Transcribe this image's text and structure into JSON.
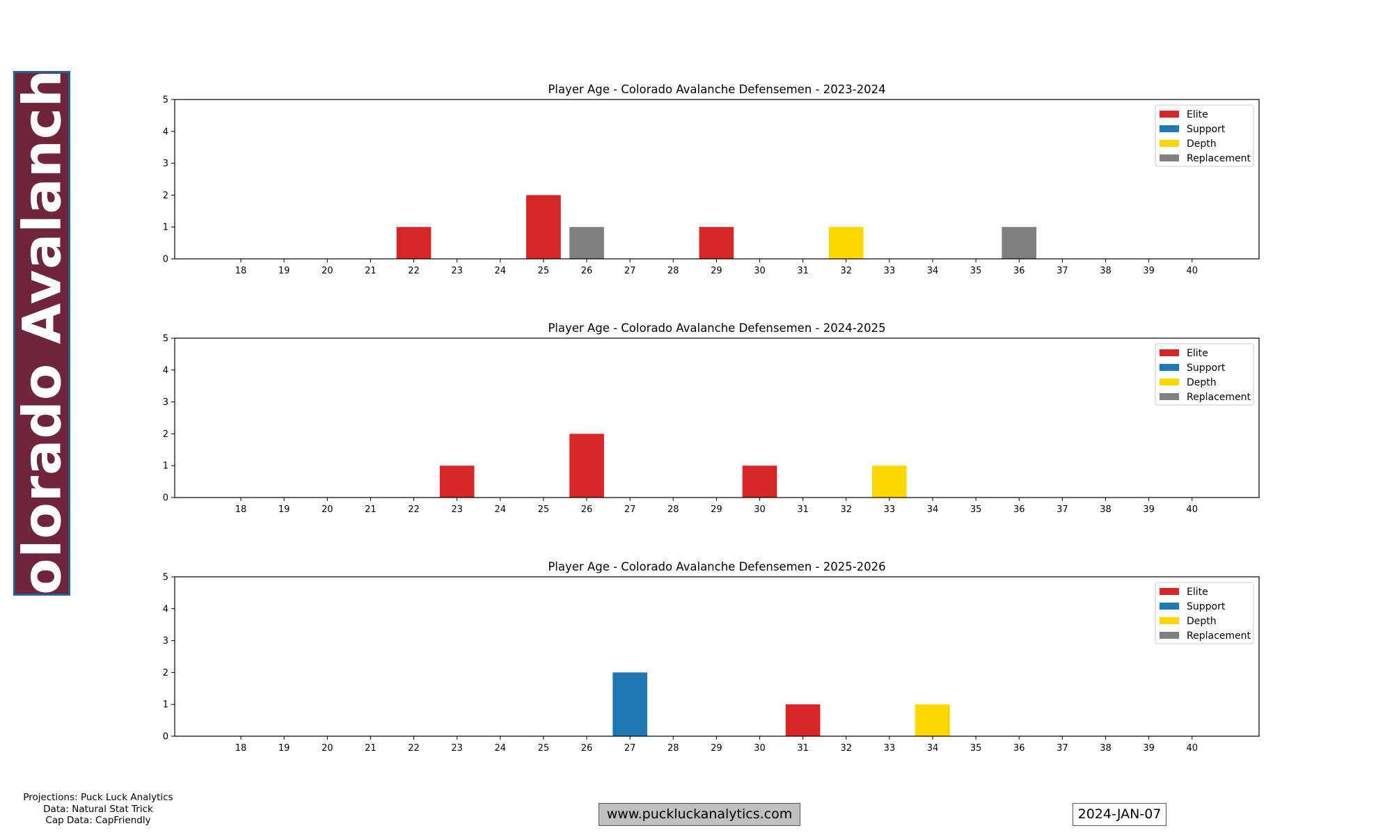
{
  "banner": {
    "team": "Colorado Avalanche",
    "bg_color": "#6f263d",
    "border_color": "#236192"
  },
  "credits": [
    "Projections: Puck Luck Analytics",
    "Data: Natural Stat Trick",
    "Cap Data: CapFriendly"
  ],
  "url": "www.puckluckanalytics.com",
  "date": "2024-JAN-07",
  "chart_data": [
    {
      "type": "bar",
      "title": "Player Age - Colorado Avalanche Defensemen - 2023-2024",
      "categories": [
        18,
        19,
        20,
        21,
        22,
        23,
        24,
        25,
        26,
        27,
        28,
        29,
        30,
        31,
        32,
        33,
        34,
        35,
        36,
        37,
        38,
        39,
        40
      ],
      "xlim": [
        16.47,
        41.55
      ],
      "ylim": [
        0,
        5
      ],
      "yticks": [
        0,
        1,
        2,
        3,
        4,
        5
      ],
      "legend": {
        "placement": "top-right",
        "entries": [
          "Elite",
          "Support",
          "Depth",
          "Replacement"
        ]
      },
      "bars": [
        {
          "age": 22,
          "tier": "Elite",
          "count": 1
        },
        {
          "age": 25,
          "tier": "Elite",
          "count": 2
        },
        {
          "age": 26,
          "tier": "Replacement",
          "count": 1
        },
        {
          "age": 29,
          "tier": "Elite",
          "count": 1
        },
        {
          "age": 32,
          "tier": "Depth",
          "count": 1
        },
        {
          "age": 36,
          "tier": "Replacement",
          "count": 1
        }
      ]
    },
    {
      "type": "bar",
      "title": "Player Age - Colorado Avalanche Defensemen - 2024-2025",
      "categories": [
        18,
        19,
        20,
        21,
        22,
        23,
        24,
        25,
        26,
        27,
        28,
        29,
        30,
        31,
        32,
        33,
        34,
        35,
        36,
        37,
        38,
        39,
        40
      ],
      "xlim": [
        16.47,
        41.55
      ],
      "ylim": [
        0,
        5
      ],
      "yticks": [
        0,
        1,
        2,
        3,
        4,
        5
      ],
      "legend": {
        "placement": "top-right",
        "entries": [
          "Elite",
          "Support",
          "Depth",
          "Replacement"
        ]
      },
      "bars": [
        {
          "age": 23,
          "tier": "Elite",
          "count": 1
        },
        {
          "age": 26,
          "tier": "Elite",
          "count": 2
        },
        {
          "age": 30,
          "tier": "Elite",
          "count": 1
        },
        {
          "age": 33,
          "tier": "Depth",
          "count": 1
        }
      ]
    },
    {
      "type": "bar",
      "title": "Player Age - Colorado Avalanche Defensemen - 2025-2026",
      "categories": [
        18,
        19,
        20,
        21,
        22,
        23,
        24,
        25,
        26,
        27,
        28,
        29,
        30,
        31,
        32,
        33,
        34,
        35,
        36,
        37,
        38,
        39,
        40
      ],
      "xlim": [
        16.47,
        41.55
      ],
      "ylim": [
        0,
        5
      ],
      "yticks": [
        0,
        1,
        2,
        3,
        4,
        5
      ],
      "legend": {
        "placement": "top-right",
        "entries": [
          "Elite",
          "Support",
          "Depth",
          "Replacement"
        ]
      },
      "bars": [
        {
          "age": 27,
          "tier": "Support",
          "count": 2
        },
        {
          "age": 31,
          "tier": "Elite",
          "count": 1
        },
        {
          "age": 34,
          "tier": "Depth",
          "count": 1
        }
      ]
    }
  ],
  "tier_colors": {
    "Elite": "#d62728",
    "Support": "#1f77b4",
    "Depth": "#ffd700",
    "Replacement": "#808080"
  }
}
